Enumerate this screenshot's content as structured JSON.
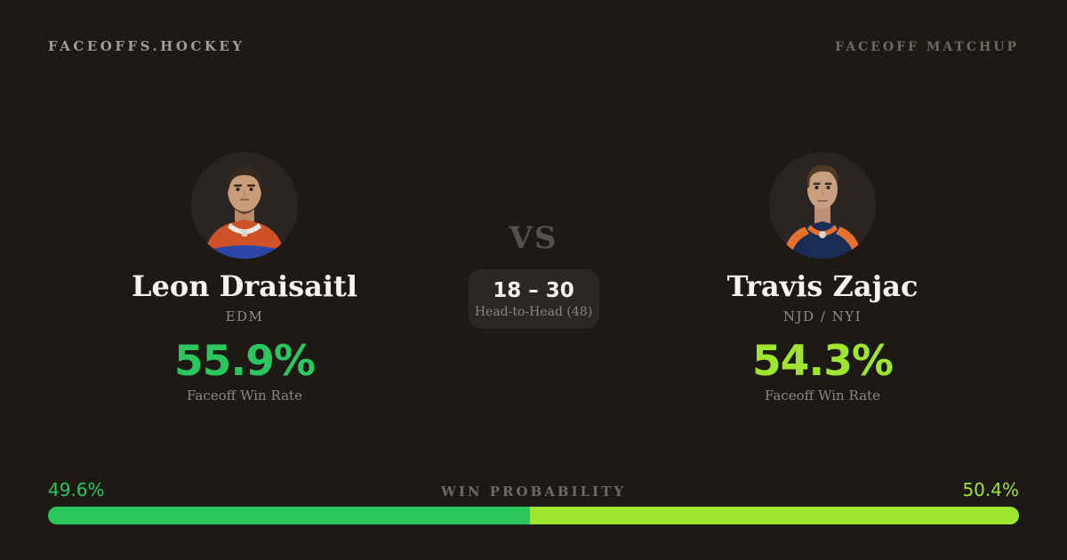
{
  "header": {
    "brand": "FACEOFFS.HOCKEY",
    "page_label": "FACEOFF MATCHUP"
  },
  "players": {
    "left": {
      "name": "Leon Draisaitl",
      "team": "EDM",
      "win_rate": "55.9%",
      "win_rate_label": "Faceoff Win Rate",
      "accent_color": "#2bc65e"
    },
    "right": {
      "name": "Travis Zajac",
      "team": "NJD / NYI",
      "win_rate": "54.3%",
      "win_rate_label": "Faceoff Win Rate",
      "accent_color": "#9fe42f"
    }
  },
  "matchup": {
    "vs_label": "VS",
    "head_to_head_score": "18 – 30",
    "head_to_head_label": "Head-to-Head (48)"
  },
  "win_probability": {
    "title": "WIN PROBABILITY",
    "left": {
      "label": "49.6%",
      "value": 49.6,
      "color": "#2bc65e"
    },
    "right": {
      "label": "50.4%",
      "value": 50.4,
      "color": "#9fe42f"
    }
  },
  "colors": {
    "background": "#1d1915",
    "panel": "#2b2724",
    "avatar_background": "#2a2522"
  }
}
